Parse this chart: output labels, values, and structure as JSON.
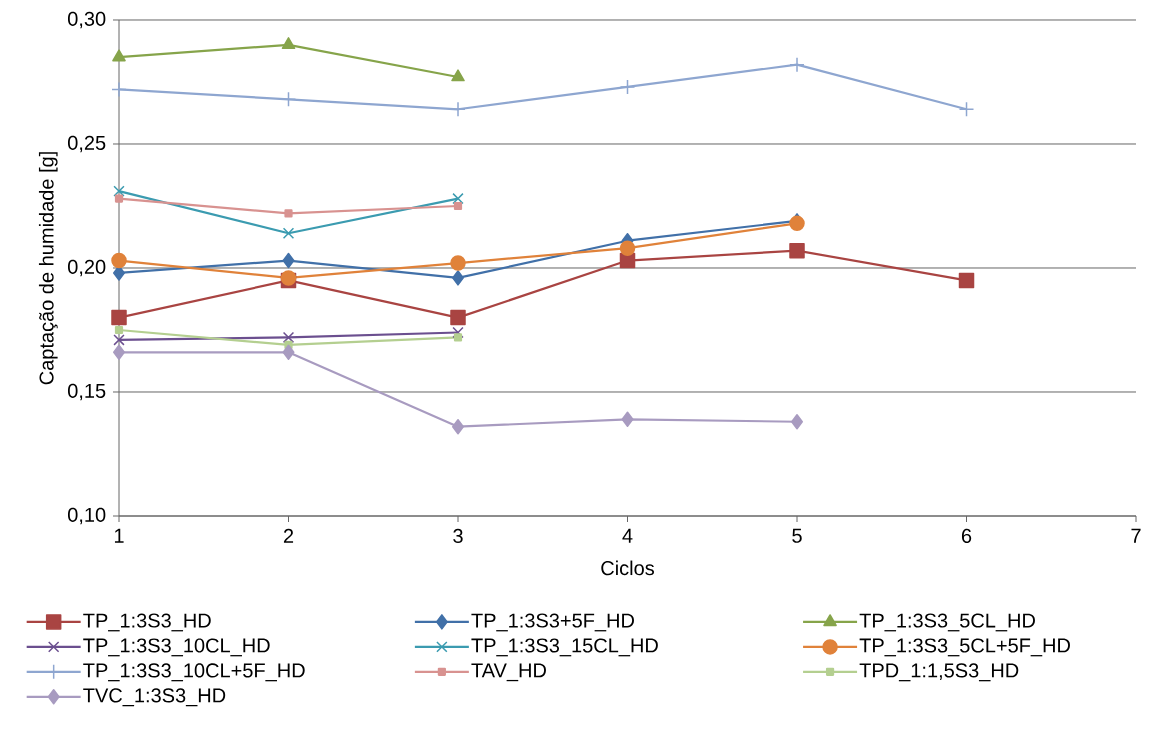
{
  "chart_data": {
    "type": "line",
    "xlabel": "Ciclos",
    "ylabel": "Captação de humidade [g]",
    "xlim": [
      1,
      7
    ],
    "xticks": [
      1,
      2,
      3,
      4,
      5,
      6,
      7
    ],
    "ylim": [
      0.1,
      0.3
    ],
    "yticks": [
      {
        "value": 0.1,
        "label": "0,10"
      },
      {
        "value": 0.15,
        "label": "0,15"
      },
      {
        "value": 0.2,
        "label": "0,20"
      },
      {
        "value": 0.25,
        "label": "0,25"
      },
      {
        "value": 0.3,
        "label": "0,30"
      }
    ],
    "grid": "y",
    "legend": "bottom",
    "line_style": "solid",
    "x": [
      1,
      2,
      3,
      4,
      5,
      6
    ],
    "series": [
      {
        "name": "TP_1:3S3_HD",
        "color": "#a94442",
        "marker": "square",
        "values": [
          0.18,
          0.195,
          0.18,
          0.203,
          0.207,
          0.195
        ]
      },
      {
        "name": "TP_1:3S3+5F_HD",
        "color": "#4170a8",
        "marker": "diamond",
        "values": [
          0.198,
          0.203,
          0.196,
          0.211,
          0.219,
          null
        ]
      },
      {
        "name": "TP_1:3S3_5CL_HD",
        "color": "#86a44a",
        "marker": "triangle",
        "values": [
          0.285,
          0.29,
          0.277,
          null,
          null,
          null
        ]
      },
      {
        "name": "TP_1:3S3_10CL_HD",
        "color": "#6b4f8f",
        "marker": "cross",
        "values": [
          0.171,
          0.172,
          0.174,
          null,
          null,
          null
        ]
      },
      {
        "name": "TP_1:3S3_15CL_HD",
        "color": "#3b9bb0",
        "marker": "cross",
        "values": [
          0.231,
          0.214,
          0.228,
          null,
          null,
          null
        ]
      },
      {
        "name": "TP_1:3S3_5CL+5F_HD",
        "color": "#e0823a",
        "marker": "circle",
        "values": [
          0.203,
          0.196,
          0.202,
          0.208,
          0.218,
          null
        ]
      },
      {
        "name": "TP_1:3S3_10CL+5F_HD",
        "color": "#8ea6d0",
        "marker": "plus",
        "values": [
          0.272,
          0.268,
          0.264,
          0.273,
          0.282,
          0.264
        ]
      },
      {
        "name": "TAV_HD",
        "color": "#d89290",
        "marker": "square",
        "values": [
          0.228,
          0.222,
          0.225,
          null,
          null,
          null
        ]
      },
      {
        "name": "TPD_1:1,5S3_HD",
        "color": "#b4cf90",
        "marker": "square",
        "values": [
          0.175,
          0.169,
          0.172,
          null,
          null,
          null
        ]
      },
      {
        "name": "TVC_1:3S3_HD",
        "color": "#a89bc0",
        "marker": "diamond",
        "values": [
          0.166,
          0.166,
          0.136,
          0.139,
          0.138,
          null
        ]
      }
    ]
  }
}
